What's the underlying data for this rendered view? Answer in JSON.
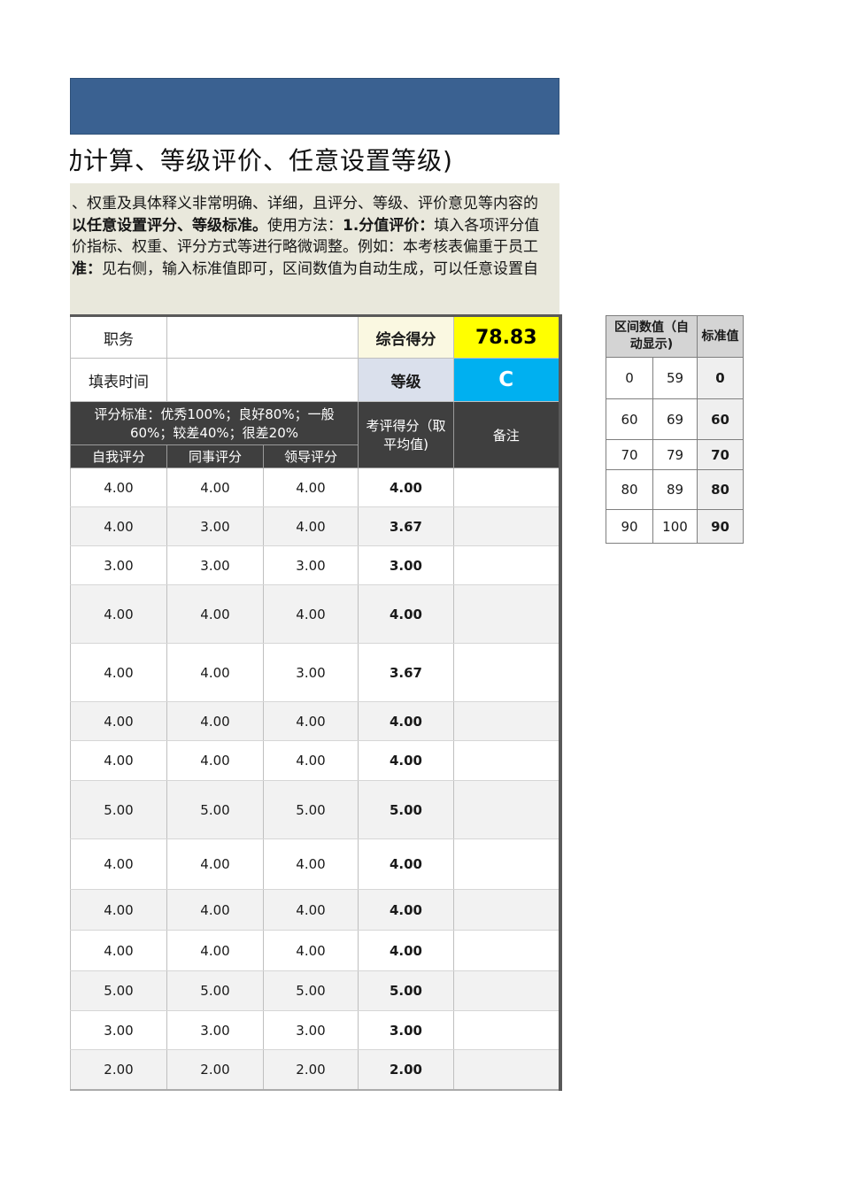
{
  "title": "动计算、等级评价、任意设置等级)",
  "notice": {
    "l1": "、权重及具体释义非常明确、详细，且评分、等级、评价意见等内容的",
    "l2a": "以任意设置评分、等级标准。",
    "l2b": "使用方法：",
    "l2c": "1.分值评价：",
    "l2d": "填入各项评分值",
    "l3": "价指标、权重、评分方式等进行略微调整。例如：本考核表偏重于员工",
    "l4a": "准：",
    "l4b": "见右侧，输入标准值即可，区间数值为自动生成，可以任意设置自"
  },
  "summary": {
    "position_label": "职务",
    "position_value": "",
    "score_label": "综合得分",
    "score_value": "78.83",
    "date_label": "填表时间",
    "date_value": "",
    "grade_label": "等级",
    "grade_value": "C"
  },
  "main_table": {
    "standard_header": "评分标准：优秀100%；良好80%；一般60%；较差40%；很差20%",
    "sub_headers": [
      "自我评分",
      "同事评分",
      "领导评分"
    ],
    "avg_header": "考评得分（取平均值)",
    "remark_header": "备注",
    "rows": [
      {
        "self": "4.00",
        "peer": "4.00",
        "leader": "4.00",
        "avg": "4.00",
        "remark": ""
      },
      {
        "self": "4.00",
        "peer": "3.00",
        "leader": "4.00",
        "avg": "3.67",
        "remark": ""
      },
      {
        "self": "3.00",
        "peer": "3.00",
        "leader": "3.00",
        "avg": "3.00",
        "remark": ""
      },
      {
        "self": "4.00",
        "peer": "4.00",
        "leader": "4.00",
        "avg": "4.00",
        "remark": ""
      },
      {
        "self": "4.00",
        "peer": "4.00",
        "leader": "3.00",
        "avg": "3.67",
        "remark": ""
      },
      {
        "self": "4.00",
        "peer": "4.00",
        "leader": "4.00",
        "avg": "4.00",
        "remark": ""
      },
      {
        "self": "4.00",
        "peer": "4.00",
        "leader": "4.00",
        "avg": "4.00",
        "remark": ""
      },
      {
        "self": "5.00",
        "peer": "5.00",
        "leader": "5.00",
        "avg": "5.00",
        "remark": ""
      },
      {
        "self": "4.00",
        "peer": "4.00",
        "leader": "4.00",
        "avg": "4.00",
        "remark": ""
      },
      {
        "self": "4.00",
        "peer": "4.00",
        "leader": "4.00",
        "avg": "4.00",
        "remark": ""
      },
      {
        "self": "4.00",
        "peer": "4.00",
        "leader": "4.00",
        "avg": "4.00",
        "remark": ""
      },
      {
        "self": "5.00",
        "peer": "5.00",
        "leader": "5.00",
        "avg": "5.00",
        "remark": ""
      },
      {
        "self": "3.00",
        "peer": "3.00",
        "leader": "3.00",
        "avg": "3.00",
        "remark": ""
      },
      {
        "self": "2.00",
        "peer": "2.00",
        "leader": "2.00",
        "avg": "2.00",
        "remark": ""
      }
    ]
  },
  "range_table": {
    "range_header": "区间数值（自动显示)",
    "standard_header": "标准值",
    "rows": [
      {
        "from": "0",
        "to": "59",
        "std": "0"
      },
      {
        "from": "60",
        "to": "69",
        "std": "60"
      },
      {
        "from": "70",
        "to": "79",
        "std": "70"
      },
      {
        "from": "80",
        "to": "89",
        "std": "80"
      },
      {
        "from": "90",
        "to": "100",
        "std": "90"
      }
    ]
  },
  "colors": {
    "banner": "#3a6191",
    "notice_bg": "#e9e8dc",
    "header_bg": "#3f3f3f",
    "score_bg": "#ffff00",
    "score_label_bg": "#faf8e1",
    "grade_bg": "#00b0f0",
    "grade_label_bg": "#dae0ec",
    "row_alt_bg": "#f2f2f2"
  }
}
